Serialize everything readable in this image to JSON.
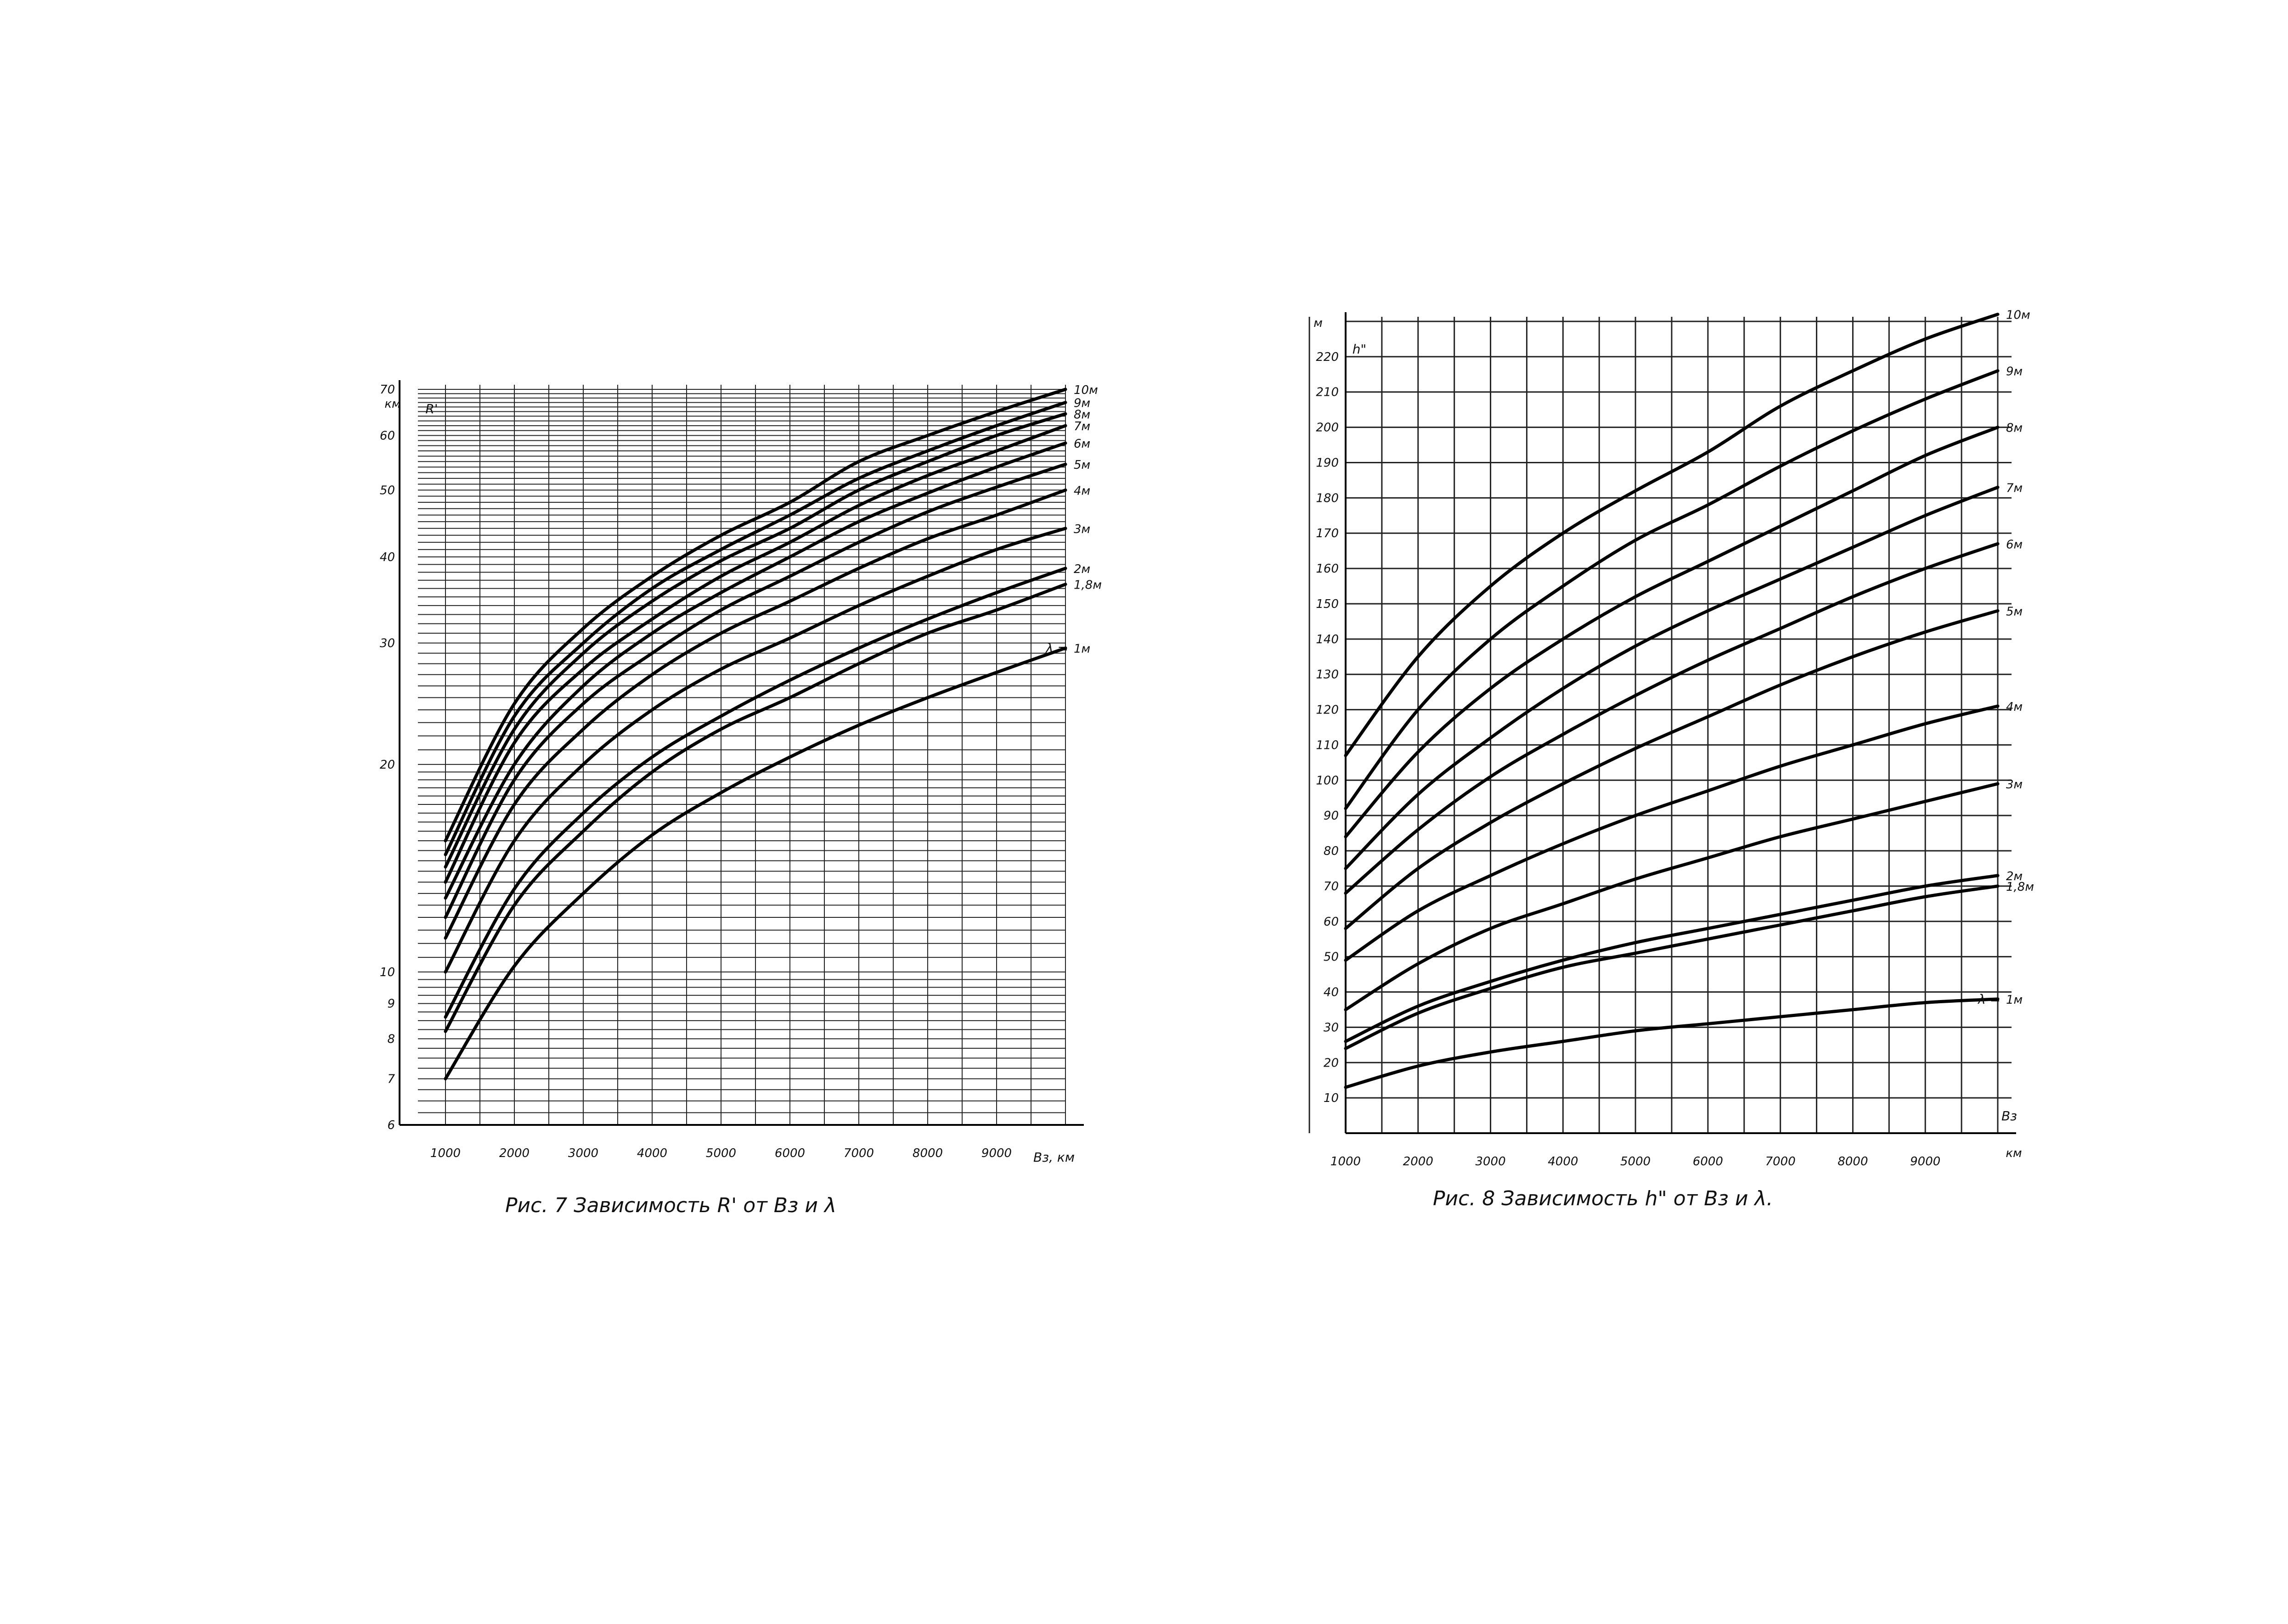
{
  "chart_data": [
    {
      "type": "line",
      "caption": "Рис. 7   Зависимость R' от Вз и λ",
      "y_axis_label": "R'",
      "y_unit": "км",
      "x_axis_label": "Вз, км",
      "y_scale": "log",
      "ylim": [
        6,
        70
      ],
      "xlim": [
        1000,
        10000
      ],
      "x_ticks": [
        1000,
        2000,
        3000,
        4000,
        5000,
        6000,
        7000,
        8000,
        9000
      ],
      "x_tick_labels": [
        "1000",
        "2000",
        "3000",
        "4000",
        "5000",
        "6000",
        "7000",
        "8000",
        "9000"
      ],
      "y_ticks": [
        6,
        7,
        8,
        9,
        10,
        20,
        30,
        40,
        50,
        60,
        70
      ],
      "y_tick_labels": [
        "6",
        "7",
        "8",
        "9",
        "10",
        "20",
        "30",
        "40",
        "50",
        "60",
        "70"
      ],
      "grid": true,
      "lambda_prefix": "λ =",
      "x": [
        1000,
        2000,
        3000,
        4000,
        5000,
        6000,
        7000,
        8000,
        9000,
        10000
      ],
      "series": [
        {
          "name": "10м",
          "values": [
            15.5,
            24.5,
            31.5,
            37.5,
            43.0,
            48.0,
            55.0,
            60.0,
            65.0,
            70.0
          ]
        },
        {
          "name": "9м",
          "values": [
            14.8,
            23.5,
            30.0,
            36.0,
            41.0,
            46.0,
            52.0,
            57.0,
            62.0,
            67.0
          ]
        },
        {
          "name": "8м",
          "values": [
            14.2,
            22.5,
            29.0,
            34.5,
            39.5,
            44.0,
            50.0,
            55.0,
            60.0,
            64.5
          ]
        },
        {
          "name": "7м",
          "values": [
            13.5,
            21.5,
            27.5,
            32.5,
            37.5,
            42.0,
            47.5,
            52.5,
            57.0,
            62.0
          ]
        },
        {
          "name": "6м",
          "values": [
            12.8,
            20.0,
            26.0,
            31.0,
            35.5,
            40.0,
            45.0,
            49.5,
            54.0,
            58.5
          ]
        },
        {
          "name": "5м",
          "values": [
            12.0,
            19.0,
            24.5,
            29.0,
            33.5,
            37.5,
            42.0,
            46.5,
            50.5,
            54.5
          ]
        },
        {
          "name": "4м",
          "values": [
            11.2,
            17.5,
            22.5,
            27.0,
            31.0,
            34.5,
            38.5,
            42.5,
            46.0,
            50.0
          ]
        },
        {
          "name": "3м",
          "values": [
            10.0,
            15.5,
            20.0,
            24.0,
            27.5,
            30.5,
            34.0,
            37.5,
            41.0,
            44.0
          ]
        },
        {
          "name": "2м",
          "values": [
            8.6,
            13.2,
            17.0,
            20.5,
            23.5,
            26.5,
            29.5,
            32.5,
            35.5,
            38.5
          ]
        },
        {
          "name": "1,8м",
          "values": [
            8.2,
            12.5,
            16.0,
            19.5,
            22.5,
            25.0,
            28.0,
            31.0,
            33.5,
            36.5
          ]
        },
        {
          "name": "1м",
          "values": [
            7.0,
            10.2,
            13.0,
            15.8,
            18.2,
            20.5,
            22.8,
            25.0,
            27.2,
            29.5
          ]
        }
      ]
    },
    {
      "type": "line",
      "caption": "Рис. 8     Зависимость h\" от Вз и λ.",
      "y_axis_label": "h\"",
      "y_unit": "м",
      "x_axis_label": "Вз",
      "x_unit": "км",
      "y_scale": "linear",
      "ylim": [
        0,
        230
      ],
      "xlim": [
        1000,
        10000
      ],
      "x_ticks": [
        1000,
        2000,
        3000,
        4000,
        5000,
        6000,
        7000,
        8000,
        9000
      ],
      "x_tick_labels": [
        "1000",
        "2000",
        "3000",
        "4000",
        "5000",
        "6000",
        "7000",
        "8000",
        "9000"
      ],
      "y_ticks": [
        10,
        20,
        30,
        40,
        50,
        60,
        70,
        80,
        90,
        100,
        110,
        120,
        130,
        140,
        150,
        160,
        170,
        180,
        190,
        200,
        210,
        220
      ],
      "y_tick_labels": [
        "10",
        "20",
        "30",
        "40",
        "50",
        "60",
        "70",
        "80",
        "90",
        "100",
        "110",
        "120",
        "130",
        "140",
        "150",
        "160",
        "170",
        "180",
        "190",
        "200",
        "210",
        "220"
      ],
      "grid": true,
      "lambda_prefix": "λ =",
      "x": [
        1000,
        2000,
        3000,
        4000,
        5000,
        6000,
        7000,
        8000,
        9000,
        10000
      ],
      "series": [
        {
          "name": "10м",
          "values": [
            107,
            135,
            155,
            170,
            182,
            193,
            206,
            216,
            225,
            232
          ]
        },
        {
          "name": "9м",
          "values": [
            92,
            120,
            140,
            155,
            168,
            178,
            189,
            199,
            208,
            216
          ]
        },
        {
          "name": "8м",
          "values": [
            84,
            108,
            126,
            140,
            152,
            162,
            172,
            182,
            192,
            200
          ]
        },
        {
          "name": "7м",
          "values": [
            75,
            96,
            112,
            126,
            138,
            148,
            157,
            166,
            175,
            183
          ]
        },
        {
          "name": "6м",
          "values": [
            68,
            86,
            101,
            113,
            124,
            134,
            143,
            152,
            160,
            167
          ]
        },
        {
          "name": "5м",
          "values": [
            58,
            75,
            88,
            99,
            109,
            118,
            127,
            135,
            142,
            148
          ]
        },
        {
          "name": "4м",
          "values": [
            49,
            63,
            73,
            82,
            90,
            97,
            104,
            110,
            116,
            121
          ]
        },
        {
          "name": "3м",
          "values": [
            35,
            48,
            58,
            65,
            72,
            78,
            84,
            89,
            94,
            99
          ]
        },
        {
          "name": "2м",
          "values": [
            26,
            36,
            43,
            49,
            54,
            58,
            62,
            66,
            70,
            73
          ]
        },
        {
          "name": "1,8м",
          "values": [
            24,
            34,
            41,
            47,
            51,
            55,
            59,
            63,
            67,
            70
          ]
        },
        {
          "name": "1м",
          "values": [
            13,
            19,
            23,
            26,
            29,
            31,
            33,
            35,
            37,
            38
          ]
        }
      ]
    }
  ]
}
